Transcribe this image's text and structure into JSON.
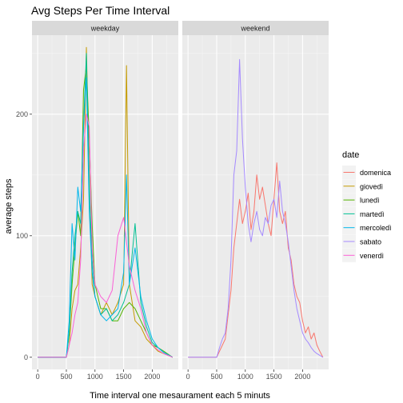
{
  "chart_data": {
    "type": "line",
    "title": "Avg Steps Per Time Interval",
    "xlabel": "Time interval one mesaurament each 5 minuts",
    "ylabel": "average steps",
    "xlim": [
      -100,
      2455
    ],
    "ylim": [
      -10,
      265
    ],
    "x_ticks": [
      0,
      500,
      1000,
      1500,
      2000
    ],
    "x_tick_labels": [
      "0",
      "500",
      "1000",
      "1500",
      "2000"
    ],
    "y_ticks": [
      0,
      100,
      200
    ],
    "y_tick_labels": [
      "0",
      "100",
      "200"
    ],
    "grid": true,
    "legend": {
      "title": "date",
      "position": "right",
      "entries": [
        {
          "label": "domenica",
          "color": "#F8766D"
        },
        {
          "label": "giovedì",
          "color": "#C49A00"
        },
        {
          "label": "lunedì",
          "color": "#53B400"
        },
        {
          "label": "martedì",
          "color": "#00C094"
        },
        {
          "label": "mercoledì",
          "color": "#00B6EB"
        },
        {
          "label": "sabato",
          "color": "#A58AFF"
        },
        {
          "label": "venerdì",
          "color": "#FB61D7"
        }
      ]
    },
    "panels": [
      {
        "label": "weekday",
        "series": [
          {
            "name": "giovedì",
            "color": "#C49A00",
            "points": [
              [
                0,
                0
              ],
              [
                500,
                0
              ],
              [
                550,
                10
              ],
              [
                600,
                40
              ],
              [
                650,
                55
              ],
              [
                700,
                60
              ],
              [
                750,
                90
              ],
              [
                800,
                130
              ],
              [
                850,
                255
              ],
              [
                900,
                150
              ],
              [
                950,
                60
              ],
              [
                1000,
                50
              ],
              [
                1100,
                35
              ],
              [
                1200,
                45
              ],
              [
                1300,
                35
              ],
              [
                1400,
                45
              ],
              [
                1500,
                60
              ],
              [
                1550,
                240
              ],
              [
                1600,
                60
              ],
              [
                1700,
                30
              ],
              [
                1800,
                25
              ],
              [
                1900,
                15
              ],
              [
                2000,
                10
              ],
              [
                2100,
                5
              ],
              [
                2200,
                3
              ],
              [
                2355,
                0
              ]
            ]
          },
          {
            "name": "lunedì",
            "color": "#53B400",
            "points": [
              [
                0,
                0
              ],
              [
                500,
                0
              ],
              [
                550,
                20
              ],
              [
                600,
                60
              ],
              [
                650,
                90
              ],
              [
                700,
                120
              ],
              [
                750,
                100
              ],
              [
                800,
                220
              ],
              [
                850,
                240
              ],
              [
                900,
                180
              ],
              [
                950,
                110
              ],
              [
                1000,
                60
              ],
              [
                1100,
                40
              ],
              [
                1200,
                40
              ],
              [
                1300,
                30
              ],
              [
                1400,
                30
              ],
              [
                1500,
                40
              ],
              [
                1600,
                45
              ],
              [
                1700,
                40
              ],
              [
                1800,
                30
              ],
              [
                1900,
                20
              ],
              [
                2000,
                10
              ],
              [
                2100,
                8
              ],
              [
                2200,
                5
              ],
              [
                2355,
                0
              ]
            ]
          },
          {
            "name": "martedì",
            "color": "#00C094",
            "points": [
              [
                0,
                0
              ],
              [
                500,
                0
              ],
              [
                550,
                20
              ],
              [
                600,
                70
              ],
              [
                650,
                100
              ],
              [
                700,
                120
              ],
              [
                750,
                110
              ],
              [
                800,
                190
              ],
              [
                850,
                250
              ],
              [
                900,
                140
              ],
              [
                950,
                80
              ],
              [
                1000,
                50
              ],
              [
                1100,
                35
              ],
              [
                1200,
                40
              ],
              [
                1300,
                30
              ],
              [
                1400,
                35
              ],
              [
                1500,
                45
              ],
              [
                1600,
                60
              ],
              [
                1700,
                110
              ],
              [
                1800,
                45
              ],
              [
                1900,
                25
              ],
              [
                2000,
                12
              ],
              [
                2100,
                8
              ],
              [
                2200,
                4
              ],
              [
                2355,
                0
              ]
            ]
          },
          {
            "name": "mercoledì",
            "color": "#00B6EB",
            "points": [
              [
                0,
                0
              ],
              [
                500,
                0
              ],
              [
                550,
                30
              ],
              [
                600,
                110
              ],
              [
                650,
                80
              ],
              [
                700,
                140
              ],
              [
                750,
                120
              ],
              [
                800,
                190
              ],
              [
                850,
                230
              ],
              [
                900,
                120
              ],
              [
                950,
                70
              ],
              [
                1000,
                50
              ],
              [
                1100,
                35
              ],
              [
                1200,
                30
              ],
              [
                1300,
                35
              ],
              [
                1400,
                40
              ],
              [
                1500,
                70
              ],
              [
                1550,
                150
              ],
              [
                1600,
                60
              ],
              [
                1700,
                90
              ],
              [
                1800,
                50
              ],
              [
                1900,
                30
              ],
              [
                2000,
                15
              ],
              [
                2100,
                8
              ],
              [
                2200,
                4
              ],
              [
                2355,
                0
              ]
            ]
          },
          {
            "name": "venerdì",
            "color": "#FB61D7",
            "points": [
              [
                0,
                0
              ],
              [
                500,
                0
              ],
              [
                550,
                10
              ],
              [
                600,
                20
              ],
              [
                650,
                35
              ],
              [
                700,
                45
              ],
              [
                750,
                80
              ],
              [
                800,
                170
              ],
              [
                850,
                200
              ],
              [
                900,
                190
              ],
              [
                950,
                90
              ],
              [
                1000,
                60
              ],
              [
                1100,
                50
              ],
              [
                1200,
                45
              ],
              [
                1300,
                55
              ],
              [
                1400,
                100
              ],
              [
                1500,
                115
              ],
              [
                1600,
                75
              ],
              [
                1700,
                55
              ],
              [
                1800,
                40
              ],
              [
                1900,
                20
              ],
              [
                2000,
                10
              ],
              [
                2100,
                6
              ],
              [
                2200,
                3
              ],
              [
                2355,
                0
              ]
            ]
          }
        ]
      },
      {
        "label": "weekend",
        "series": [
          {
            "name": "domenica",
            "color": "#F8766D",
            "points": [
              [
                0,
                0
              ],
              [
                500,
                0
              ],
              [
                550,
                5
              ],
              [
                600,
                10
              ],
              [
                650,
                15
              ],
              [
                700,
                35
              ],
              [
                750,
                55
              ],
              [
                800,
                90
              ],
              [
                850,
                110
              ],
              [
                900,
                130
              ],
              [
                950,
                110
              ],
              [
                1000,
                120
              ],
              [
                1050,
                135
              ],
              [
                1100,
                105
              ],
              [
                1150,
                120
              ],
              [
                1200,
                150
              ],
              [
                1250,
                130
              ],
              [
                1300,
                140
              ],
              [
                1350,
                125
              ],
              [
                1400,
                110
              ],
              [
                1450,
                100
              ],
              [
                1500,
                130
              ],
              [
                1550,
                160
              ],
              [
                1600,
                120
              ],
              [
                1650,
                110
              ],
              [
                1700,
                120
              ],
              [
                1750,
                90
              ],
              [
                1800,
                80
              ],
              [
                1850,
                60
              ],
              [
                1900,
                50
              ],
              [
                1950,
                45
              ],
              [
                2000,
                30
              ],
              [
                2050,
                20
              ],
              [
                2100,
                25
              ],
              [
                2150,
                15
              ],
              [
                2200,
                20
              ],
              [
                2250,
                10
              ],
              [
                2300,
                5
              ],
              [
                2355,
                0
              ]
            ]
          },
          {
            "name": "sabato",
            "color": "#A58AFF",
            "points": [
              [
                0,
                0
              ],
              [
                500,
                0
              ],
              [
                550,
                8
              ],
              [
                600,
                15
              ],
              [
                650,
                20
              ],
              [
                700,
                40
              ],
              [
                750,
                80
              ],
              [
                800,
                150
              ],
              [
                850,
                170
              ],
              [
                900,
                245
              ],
              [
                950,
                180
              ],
              [
                1000,
                140
              ],
              [
                1050,
                110
              ],
              [
                1100,
                95
              ],
              [
                1150,
                110
              ],
              [
                1200,
                120
              ],
              [
                1250,
                105
              ],
              [
                1300,
                100
              ],
              [
                1350,
                115
              ],
              [
                1400,
                110
              ],
              [
                1450,
                125
              ],
              [
                1500,
                130
              ],
              [
                1550,
                115
              ],
              [
                1600,
                145
              ],
              [
                1650,
                120
              ],
              [
                1700,
                110
              ],
              [
                1750,
                95
              ],
              [
                1800,
                75
              ],
              [
                1850,
                55
              ],
              [
                1900,
                40
              ],
              [
                1950,
                30
              ],
              [
                2000,
                20
              ],
              [
                2050,
                15
              ],
              [
                2100,
                12
              ],
              [
                2150,
                8
              ],
              [
                2200,
                5
              ],
              [
                2250,
                3
              ],
              [
                2355,
                0
              ]
            ]
          }
        ]
      }
    ]
  }
}
